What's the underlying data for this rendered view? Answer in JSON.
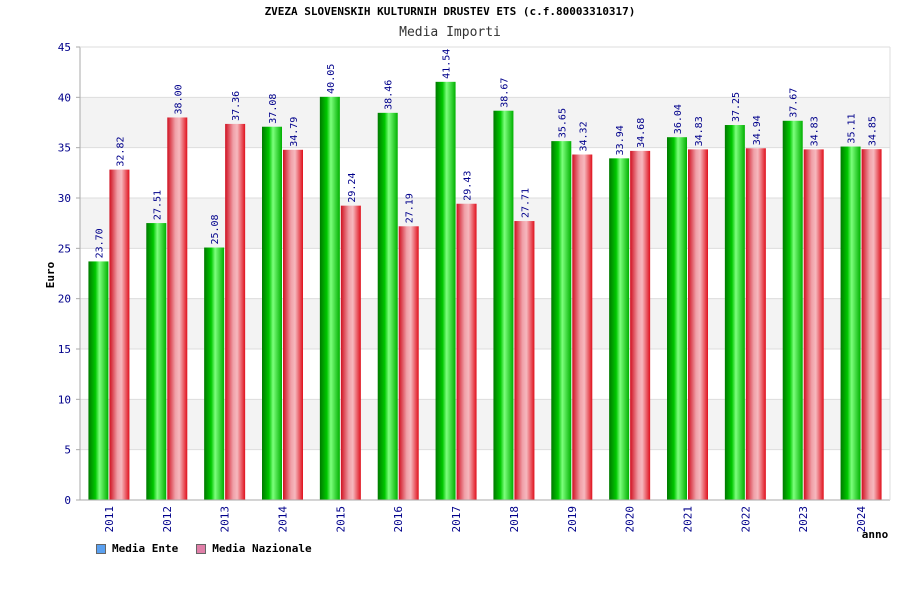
{
  "header": {
    "title": "ZVEZA SLOVENSKIH KULTURNIH DRUSTEV ETS (c.f.80003310317)",
    "subtitle": "Media Importi"
  },
  "colors": {
    "ente": "#0bbd0b",
    "nazionale": "#ef4d57",
    "ente_legend": "#5aa0f0",
    "nazionale_legend": "#e07fa8",
    "axis_text": "#00008b",
    "value_label": "#00008b"
  },
  "chart_data": {
    "type": "bar",
    "title": "Media Importi",
    "ylabel": "Euro",
    "xlabel": "anno",
    "ylim": [
      0,
      45
    ],
    "yticks": [
      0,
      5,
      10,
      15,
      20,
      25,
      30,
      35,
      40,
      45
    ],
    "grid": true,
    "legend_position": "bottom-left",
    "categories": [
      "2011",
      "2012",
      "2013",
      "2014",
      "2015",
      "2016",
      "2017",
      "2018",
      "2019",
      "2020",
      "2021",
      "2022",
      "2023",
      "2024"
    ],
    "series": [
      {
        "name": "Media Ente",
        "values": [
          23.7,
          27.51,
          25.08,
          37.08,
          40.05,
          38.46,
          41.54,
          38.67,
          35.65,
          33.94,
          36.04,
          37.25,
          37.67,
          35.11
        ]
      },
      {
        "name": "Media Nazionale",
        "values": [
          32.82,
          38.0,
          37.36,
          34.79,
          29.24,
          27.19,
          29.43,
          27.71,
          34.32,
          34.68,
          34.83,
          34.94,
          34.83,
          34.85
        ]
      }
    ]
  }
}
